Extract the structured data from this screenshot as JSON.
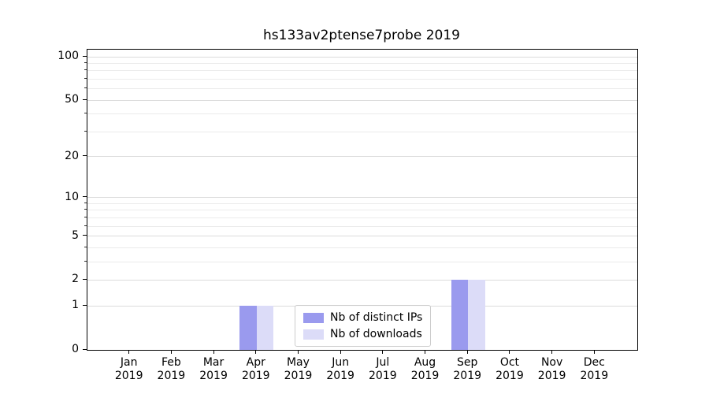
{
  "title": "hs133av2ptense7probe 2019",
  "chart_data": {
    "type": "bar",
    "title": "hs133av2ptense7probe 2019",
    "categories": [
      "Jan 2019",
      "Feb 2019",
      "Mar 2019",
      "Apr 2019",
      "May 2019",
      "Jun 2019",
      "Jul 2019",
      "Aug 2019",
      "Sep 2019",
      "Oct 2019",
      "Nov 2019",
      "Dec 2019"
    ],
    "series": [
      {
        "name": "Nb of distinct IPs",
        "color": "#9a9aee",
        "values": [
          0,
          0,
          0,
          1,
          0,
          0,
          0,
          0,
          2,
          0,
          0,
          0
        ]
      },
      {
        "name": "Nb of downloads",
        "color": "#dcdcf8",
        "values": [
          0,
          0,
          0,
          1,
          0,
          0,
          0,
          0,
          2,
          0,
          0,
          0
        ]
      }
    ],
    "yscale": "log1p",
    "ylim": [
      0,
      112
    ],
    "y_ticks": [
      0,
      1,
      2,
      5,
      10,
      20,
      50,
      100
    ],
    "y_minor_gridlines": [
      3,
      4,
      6,
      7,
      8,
      9,
      30,
      40,
      60,
      70,
      80,
      90
    ],
    "xlabel": "",
    "ylabel": "",
    "grid": "both",
    "legend_position": "lower center"
  }
}
